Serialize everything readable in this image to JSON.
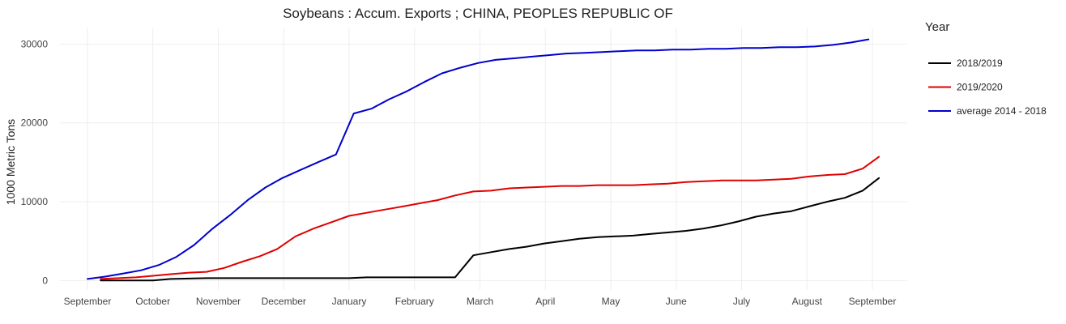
{
  "chart_data": {
    "type": "line",
    "title": "Soybeans :  Accum. Exports ;  CHINA, PEOPLES REPUBLIC OF",
    "xlabel": "",
    "ylabel": "1000 Metric Tons",
    "ylim": [
      -1200,
      32000
    ],
    "y_ticks": [
      0,
      10000,
      20000,
      30000
    ],
    "y_tick_labels": [
      "0",
      "10000",
      "20000",
      "30000"
    ],
    "x_tick_labels": [
      "September",
      "October",
      "November",
      "December",
      "January",
      "February",
      "March",
      "April",
      "May",
      "June",
      "July",
      "August",
      "September"
    ],
    "grid": true,
    "legend_position": "right",
    "legend_title": "Year",
    "series": [
      {
        "name": "2018/2019",
        "color": "#000000",
        "x": [
          0.2,
          0.47,
          0.74,
          1.0,
          1.27,
          1.55,
          1.82,
          2.09,
          2.37,
          2.64,
          2.9,
          3.18,
          3.46,
          3.73,
          4.0,
          4.27,
          4.54,
          4.82,
          5.08,
          5.35,
          5.62,
          5.9,
          6.17,
          6.45,
          6.72,
          6.98,
          7.25,
          7.52,
          7.8,
          8.07,
          8.34,
          8.6,
          8.87,
          9.15,
          9.42,
          9.69,
          9.95,
          10.22,
          10.49,
          10.76,
          11.03,
          11.31,
          11.58,
          11.85,
          12.1
        ],
        "y": [
          0,
          0,
          0,
          0,
          200,
          250,
          300,
          300,
          300,
          300,
          300,
          300,
          300,
          300,
          300,
          400,
          400,
          400,
          400,
          400,
          400,
          3200,
          3600,
          4000,
          4300,
          4700,
          5000,
          5300,
          5500,
          5600,
          5700,
          5900,
          6100,
          6300,
          6600,
          7000,
          7500,
          8100,
          8500,
          8800,
          9400,
          10000,
          10500,
          11400,
          13000
        ]
      },
      {
        "name": "2019/2020",
        "color": "#e00000",
        "x": [
          0.2,
          0.47,
          0.74,
          1.0,
          1.27,
          1.55,
          1.82,
          2.09,
          2.37,
          2.64,
          2.9,
          3.18,
          3.46,
          3.73,
          4.0,
          4.27,
          4.54,
          4.82,
          5.08,
          5.35,
          5.62,
          5.9,
          6.17,
          6.45,
          6.72,
          6.98,
          7.25,
          7.52,
          7.8,
          8.07,
          8.34,
          8.6,
          8.87,
          9.15,
          9.42,
          9.69,
          9.95,
          10.22,
          10.49,
          10.76,
          11.03,
          11.31,
          11.58,
          11.85,
          12.1
        ],
        "y": [
          200,
          300,
          400,
          600,
          800,
          1000,
          1100,
          1600,
          2400,
          3100,
          4000,
          5600,
          6600,
          7400,
          8200,
          8600,
          9000,
          9400,
          9800,
          10200,
          10800,
          11300,
          11400,
          11700,
          11800,
          11900,
          12000,
          12000,
          12100,
          12100,
          12100,
          12200,
          12300,
          12500,
          12600,
          12700,
          12700,
          12700,
          12800,
          12900,
          13200,
          13400,
          13500,
          14200,
          15700
        ]
      },
      {
        "name": "average 2014 - 2018",
        "color": "#0000cc",
        "x": [
          0.0,
          0.27,
          0.55,
          0.82,
          1.1,
          1.36,
          1.63,
          1.9,
          2.18,
          2.45,
          2.72,
          2.98,
          3.25,
          3.52,
          3.8,
          4.07,
          4.34,
          4.61,
          4.88,
          5.15,
          5.42,
          5.7,
          5.97,
          6.24,
          6.52,
          6.78,
          7.05,
          7.32,
          7.6,
          7.87,
          8.13,
          8.4,
          8.67,
          8.95,
          9.22,
          9.5,
          9.76,
          10.03,
          10.3,
          10.58,
          10.85,
          11.12,
          11.4,
          11.67,
          11.94
        ],
        "y": [
          200,
          500,
          900,
          1300,
          2000,
          3000,
          4500,
          6500,
          8300,
          10200,
          11800,
          13000,
          14000,
          15000,
          16000,
          21200,
          21800,
          23000,
          24000,
          25200,
          26300,
          27000,
          27600,
          28000,
          28200,
          28400,
          28600,
          28800,
          28900,
          29000,
          29100,
          29200,
          29200,
          29300,
          29300,
          29400,
          29400,
          29500,
          29500,
          29600,
          29600,
          29700,
          29900,
          30200,
          30600
        ]
      }
    ]
  }
}
